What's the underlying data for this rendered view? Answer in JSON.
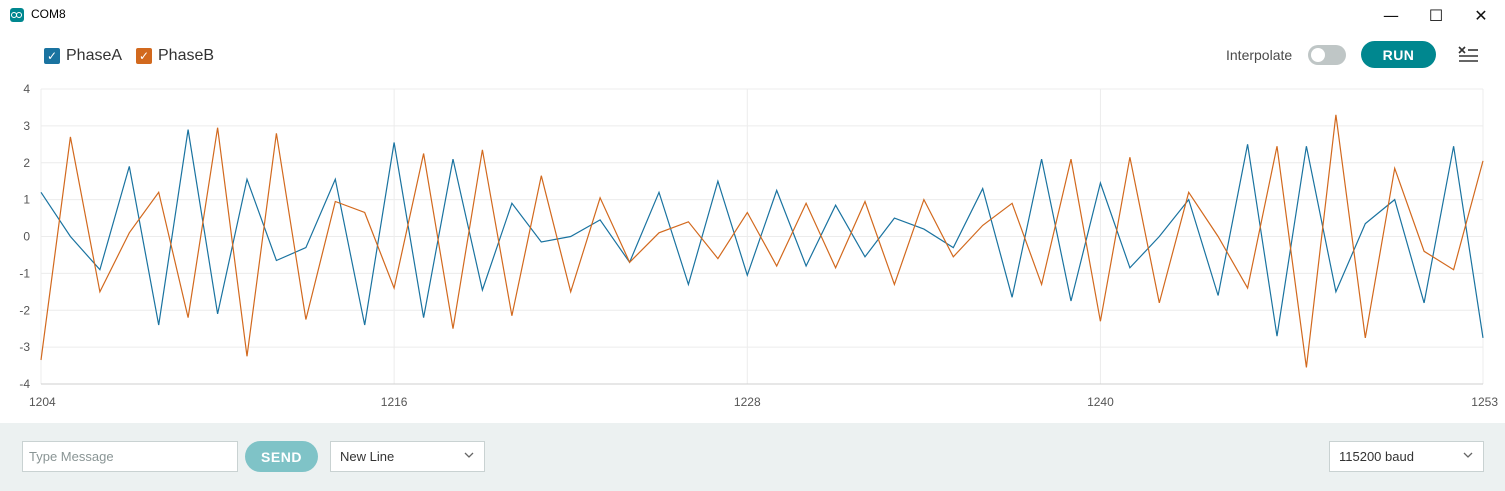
{
  "window": {
    "title": "COM8",
    "controls": {
      "minimize": "—",
      "maximize": "☐",
      "close": "✕"
    }
  },
  "toolbar": {
    "legend": [
      {
        "label": "PhaseA",
        "color": "#1a73a0",
        "checked": true
      },
      {
        "label": "PhaseB",
        "color": "#d2691e",
        "checked": true
      }
    ],
    "interpolate_label": "Interpolate",
    "interpolate_on": false,
    "run_label": "RUN"
  },
  "chart_data": {
    "type": "line",
    "x": [
      1204,
      1205,
      1206,
      1207,
      1208,
      1209,
      1210,
      1211,
      1212,
      1213,
      1214,
      1215,
      1216,
      1217,
      1218,
      1219,
      1220,
      1221,
      1222,
      1223,
      1224,
      1225,
      1226,
      1227,
      1228,
      1229,
      1230,
      1231,
      1232,
      1233,
      1234,
      1235,
      1236,
      1237,
      1238,
      1239,
      1240,
      1241,
      1242,
      1243,
      1244,
      1245,
      1246,
      1247,
      1248,
      1249,
      1250,
      1251,
      1252,
      1253
    ],
    "series": [
      {
        "name": "PhaseA",
        "color": "#1a73a0",
        "values": [
          1.2,
          0.0,
          -0.9,
          1.9,
          -2.4,
          2.9,
          -2.1,
          1.55,
          -0.65,
          -0.3,
          1.55,
          -2.4,
          2.55,
          -2.2,
          2.1,
          -1.45,
          0.9,
          -0.15,
          0.0,
          0.45,
          -0.7,
          1.2,
          -1.3,
          1.5,
          -1.05,
          1.25,
          -0.8,
          0.85,
          -0.55,
          0.5,
          0.2,
          -0.3,
          1.3,
          -1.65,
          2.1,
          -1.75,
          1.45,
          -0.85,
          0.0,
          1.0,
          -1.6,
          2.5,
          -2.7,
          2.45,
          -1.5,
          0.35,
          1.0,
          -1.8,
          2.45,
          -2.75
        ]
      },
      {
        "name": "PhaseB",
        "color": "#d2691e",
        "values": [
          -3.35,
          2.7,
          -1.5,
          0.1,
          1.2,
          -2.2,
          2.95,
          -3.25,
          2.8,
          -2.25,
          0.95,
          0.65,
          -1.4,
          2.25,
          -2.5,
          2.35,
          -2.15,
          1.65,
          -1.5,
          1.05,
          -0.7,
          0.1,
          0.4,
          -0.6,
          0.65,
          -0.8,
          0.9,
          -0.85,
          0.95,
          -1.3,
          1.0,
          -0.55,
          0.3,
          0.9,
          -1.3,
          2.1,
          -2.3,
          2.15,
          -1.8,
          1.2,
          0.0,
          -1.4,
          2.45,
          -3.55,
          3.3,
          -2.75,
          1.85,
          -0.4,
          -0.9,
          2.05
        ]
      }
    ],
    "ylim": [
      -4,
      4
    ],
    "yticks": [
      -4,
      -3,
      -2,
      -1,
      0,
      1,
      2,
      3,
      4
    ],
    "xlim": [
      1204,
      1253
    ],
    "xticks": [
      1204,
      1216,
      1228,
      1240,
      1253
    ],
    "grid": true
  },
  "footer": {
    "message_placeholder": "Type Message",
    "send_label": "SEND",
    "line_ending": "New Line",
    "baud_rate": "115200 baud"
  }
}
